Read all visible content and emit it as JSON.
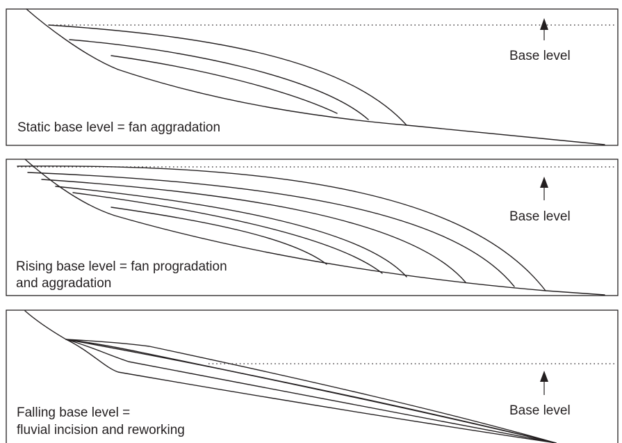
{
  "colors": {
    "line": "#231f20",
    "background": "#ffffff"
  },
  "panels": [
    {
      "caption_lines": [
        "Static base level = fan aggradation"
      ],
      "base_level_label": "Base level"
    },
    {
      "caption_lines": [
        "Rising base level = fan progradation",
        "and aggradation"
      ],
      "base_level_label": "Base level"
    },
    {
      "caption_lines": [
        "Falling base level =",
        "fluvial incision and reworking"
      ],
      "base_level_label": "Base level"
    }
  ]
}
